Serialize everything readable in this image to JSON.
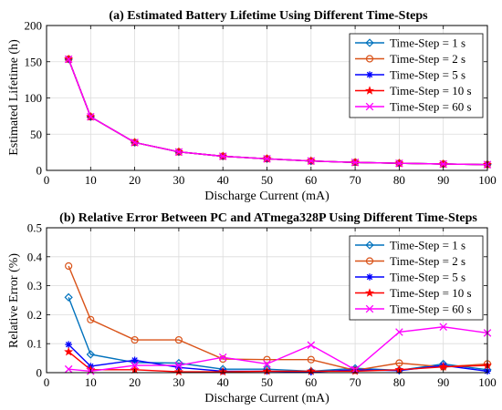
{
  "chart_data": [
    {
      "type": "line",
      "title": "(a) Estimated Battery Lifetime Using Different Time-Steps",
      "xlabel": "Discharge Current (mA)",
      "ylabel": "Estimated Lifetime (h)",
      "xlim": [
        0,
        100
      ],
      "ylim": [
        0,
        200
      ],
      "xticks": [
        0,
        10,
        20,
        30,
        40,
        50,
        60,
        70,
        80,
        90,
        100
      ],
      "yticks": [
        0,
        50,
        100,
        150,
        200
      ],
      "grid": true,
      "legend_position": "top-right",
      "x": [
        5,
        10,
        20,
        30,
        40,
        50,
        60,
        70,
        80,
        90,
        100
      ],
      "series": [
        {
          "name": "Time-Step = 1 s",
          "color": "#0072BD",
          "marker": "diamond",
          "values": [
            153.5,
            74,
            38.5,
            25.5,
            19.5,
            16,
            13,
            11,
            9.8,
            8.8,
            8
          ]
        },
        {
          "name": "Time-Step = 2 s",
          "color": "#D95319",
          "marker": "circle",
          "values": [
            153.5,
            74,
            38.5,
            25.5,
            19.5,
            16,
            13,
            11,
            9.8,
            8.8,
            8
          ]
        },
        {
          "name": "Time-Step = 5 s",
          "color": "#0000FF",
          "marker": "asterisk",
          "values": [
            153.5,
            74,
            38.5,
            25.5,
            19.5,
            16,
            13,
            11,
            9.8,
            8.8,
            8
          ]
        },
        {
          "name": "Time-Step = 10 s",
          "color": "#FF0000",
          "marker": "star",
          "values": [
            153.5,
            74,
            38.5,
            25.5,
            19.5,
            16,
            13,
            11,
            9.8,
            8.8,
            8
          ]
        },
        {
          "name": "Time-Step = 60 s",
          "color": "#FF00FF",
          "marker": "x",
          "values": [
            153.5,
            74,
            38.5,
            25.5,
            19.5,
            16,
            13,
            11,
            9.8,
            8.8,
            8
          ]
        }
      ]
    },
    {
      "type": "line",
      "title": "(b) Relative Error Between PC and ATmega328P Using Different Time-Steps",
      "xlabel": "Discharge Current (mA)",
      "ylabel": "Relative Error (%)",
      "xlim": [
        0,
        100
      ],
      "ylim": [
        0,
        0.5
      ],
      "xticks": [
        0,
        10,
        20,
        30,
        40,
        50,
        60,
        70,
        80,
        90,
        100
      ],
      "yticks": [
        0,
        0.1,
        0.2,
        0.3,
        0.4,
        0.5
      ],
      "grid": true,
      "legend_position": "top-right",
      "x": [
        5,
        10,
        20,
        30,
        40,
        50,
        60,
        70,
        80,
        90,
        100
      ],
      "series": [
        {
          "name": "Time-Step = 1 s",
          "color": "#0072BD",
          "marker": "diamond",
          "values": [
            0.26,
            0.063,
            0.035,
            0.033,
            0.012,
            0.012,
            0.005,
            0.015,
            0.008,
            0.03,
            0.01
          ]
        },
        {
          "name": "Time-Step = 2 s",
          "color": "#D95319",
          "marker": "circle",
          "values": [
            0.368,
            0.183,
            0.113,
            0.113,
            0.047,
            0.045,
            0.045,
            0.008,
            0.033,
            0.02,
            0.03
          ]
        },
        {
          "name": "Time-Step = 5 s",
          "color": "#0000FF",
          "marker": "asterisk",
          "values": [
            0.097,
            0.022,
            0.043,
            0.018,
            0.005,
            0.005,
            0.002,
            0.01,
            0.007,
            0.025,
            0.005
          ]
        },
        {
          "name": "Time-Step = 10 s",
          "color": "#FF0000",
          "marker": "star",
          "values": [
            0.072,
            0.01,
            0.01,
            0.003,
            0.003,
            0.005,
            0.005,
            0.005,
            0.01,
            0.02,
            0.025
          ]
        },
        {
          "name": "Time-Step = 60 s",
          "color": "#FF00FF",
          "marker": "x",
          "values": [
            0.012,
            0.005,
            0.025,
            0.025,
            0.053,
            0.03,
            0.095,
            0.01,
            0.14,
            0.158,
            0.137
          ]
        }
      ]
    }
  ]
}
